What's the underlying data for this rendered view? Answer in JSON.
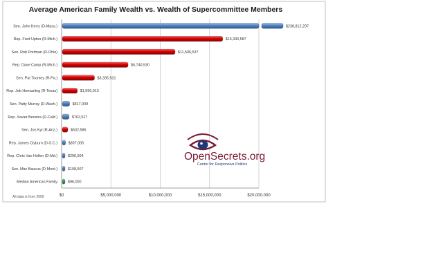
{
  "chart_data": {
    "type": "bar",
    "orientation": "horizontal",
    "title": "Average American Family Wealth vs. Wealth of Supercommittee Members",
    "footnote": "All data is from 2009",
    "categories": [
      "Sen. John Kerry (D-Mass.)",
      "Rep. Fred Upton (R-Mich.)",
      "Sen. Rob Portman (R-Ohio)",
      "Rep. Dave Camp (R-Mich.)",
      "Sen. Pat Toomey (R-Pa.)",
      "Rep. Jeb Hensarling (R-Texas)",
      "Sen. Patty Murray (D-Wash.)",
      "Rep. Xavier Becerra (D-Calif.)",
      "Sen. Jon Kyl (R-Ariz.)",
      "Rep. James Clyburn (D-S.C.)",
      "Rep. Chris Van Hollen (D-Md.)",
      "Sen. Max Baucus (D-Mont.)",
      "Median American Family"
    ],
    "values": [
      238812297,
      16330587,
      11506537,
      6740530,
      3335531,
      1599013,
      817009,
      762527,
      632586,
      397005,
      296504,
      108507,
      96000
    ],
    "value_labels": [
      "$238,812,297",
      "$16,330,587",
      "$11,506,537",
      "$6,740,530",
      "$3,335,531",
      "$1,599,013",
      "$817,009",
      "$762,527",
      "$632,586",
      "$397,005",
      "$296,504",
      "$108,507",
      "$96,000"
    ],
    "party": [
      "D",
      "R",
      "R",
      "R",
      "R",
      "R",
      "D",
      "D",
      "R",
      "D",
      "D",
      "D",
      "median"
    ],
    "colors": {
      "D": "#4f81bd",
      "R": "#c00000",
      "median": "#2e9b48",
      "grid": "#c9c9c9",
      "axis": "#7f7f7f"
    },
    "xlim": [
      0,
      20000000
    ],
    "xticks": [
      0,
      5000000,
      10000000,
      15000000,
      20000000
    ],
    "xtick_labels": [
      "$0",
      "$5,000,000",
      "$10,000,000",
      "$15,000,000",
      "$20,000,000"
    ],
    "axis_break": true,
    "grid": true,
    "legend": "none"
  },
  "logo": {
    "name": "OpenSecrets.org",
    "tagline": "Center for Responsive Politics",
    "icon": "eye-icon",
    "color": "#7a1b34"
  }
}
